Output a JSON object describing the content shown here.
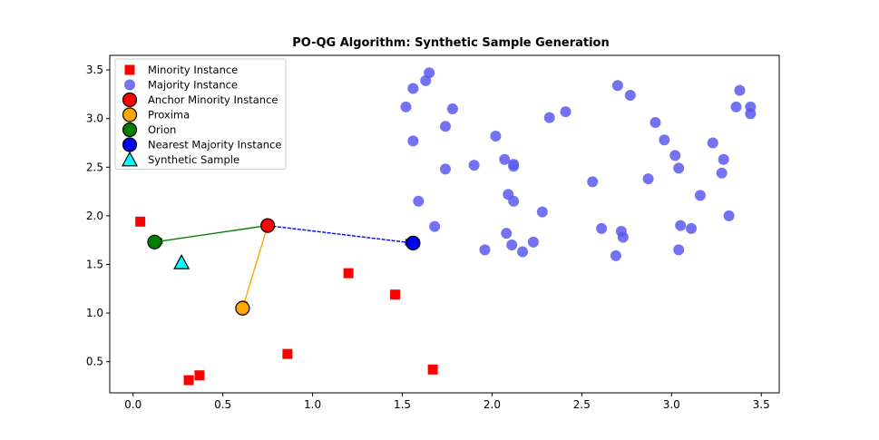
{
  "chart_data": {
    "type": "scatter",
    "title": "PO-QG Algorithm: Synthetic Sample Generation",
    "xlabel": "",
    "ylabel": "",
    "xlim": [
      -0.13,
      3.6
    ],
    "ylim": [
      0.18,
      3.65
    ],
    "x_ticks": [
      0.0,
      0.5,
      1.0,
      1.5,
      2.0,
      2.5,
      3.0,
      3.5
    ],
    "x_tick_labels": [
      "0.0",
      "0.5",
      "1.0",
      "1.5",
      "2.0",
      "2.5",
      "3.0",
      "3.5"
    ],
    "y_ticks": [
      0.5,
      1.0,
      1.5,
      2.0,
      2.5,
      3.0,
      3.5
    ],
    "y_tick_labels": [
      "0.5",
      "1.0",
      "1.5",
      "2.0",
      "2.5",
      "3.0",
      "3.5"
    ],
    "grid": false,
    "legend_position": "top-left",
    "legend": [
      {
        "label": "Minority Instance",
        "marker": "square",
        "color": "#ff0000"
      },
      {
        "label": "Majority Instance",
        "marker": "circle",
        "color": "#5a5af0"
      },
      {
        "label": "Anchor Minority Instance",
        "marker": "circle",
        "color": "#ff0000"
      },
      {
        "label": "Proxima",
        "marker": "circle",
        "color": "#ffa500"
      },
      {
        "label": "Orion",
        "marker": "circle",
        "color": "#008000"
      },
      {
        "label": "Nearest Majority Instance",
        "marker": "circle",
        "color": "#0000ff"
      },
      {
        "label": "Synthetic Sample",
        "marker": "triangle",
        "color": "#00ffff"
      }
    ],
    "series": [
      {
        "name": "Minority Instance",
        "color": "#ff0000",
        "marker": "square",
        "points": [
          [
            0.04,
            1.94
          ],
          [
            0.31,
            0.31
          ],
          [
            0.37,
            0.36
          ],
          [
            0.86,
            0.58
          ],
          [
            1.2,
            1.41
          ],
          [
            1.46,
            1.19
          ],
          [
            1.67,
            0.42
          ]
        ]
      },
      {
        "name": "Majority Instance",
        "color": "#5a5af0",
        "marker": "circle",
        "points": [
          [
            1.52,
            3.12
          ],
          [
            1.56,
            3.31
          ],
          [
            1.63,
            3.39
          ],
          [
            1.65,
            3.47
          ],
          [
            1.56,
            2.77
          ],
          [
            1.74,
            2.92
          ],
          [
            1.78,
            3.1
          ],
          [
            1.59,
            2.15
          ],
          [
            1.68,
            1.89
          ],
          [
            1.74,
            2.48
          ],
          [
            1.9,
            2.52
          ],
          [
            1.96,
            1.65
          ],
          [
            2.02,
            2.82
          ],
          [
            2.07,
            2.58
          ],
          [
            2.09,
            2.22
          ],
          [
            2.12,
            2.53
          ],
          [
            2.12,
            2.51
          ],
          [
            2.12,
            2.15
          ],
          [
            2.08,
            1.82
          ],
          [
            2.11,
            1.7
          ],
          [
            2.17,
            1.63
          ],
          [
            2.23,
            1.73
          ],
          [
            2.28,
            2.04
          ],
          [
            2.32,
            3.01
          ],
          [
            2.41,
            3.07
          ],
          [
            2.56,
            2.35
          ],
          [
            2.61,
            1.87
          ],
          [
            2.69,
            1.59
          ],
          [
            2.72,
            1.84
          ],
          [
            2.73,
            1.78
          ],
          [
            2.7,
            3.34
          ],
          [
            2.77,
            3.24
          ],
          [
            2.87,
            2.38
          ],
          [
            2.91,
            2.96
          ],
          [
            2.96,
            2.78
          ],
          [
            3.02,
            2.62
          ],
          [
            3.04,
            2.49
          ],
          [
            3.05,
            1.9
          ],
          [
            3.04,
            1.65
          ],
          [
            3.11,
            1.87
          ],
          [
            3.16,
            2.21
          ],
          [
            3.23,
            2.75
          ],
          [
            3.28,
            2.44
          ],
          [
            3.29,
            2.58
          ],
          [
            3.32,
            2.0
          ],
          [
            3.36,
            3.12
          ],
          [
            3.38,
            3.29
          ],
          [
            3.44,
            3.12
          ],
          [
            3.44,
            3.05
          ]
        ]
      },
      {
        "name": "Anchor Minority Instance",
        "color": "#ff0000",
        "marker": "circle",
        "points": [
          [
            0.75,
            1.9
          ]
        ]
      },
      {
        "name": "Proxima",
        "color": "#ffa500",
        "marker": "circle",
        "points": [
          [
            0.61,
            1.05
          ]
        ]
      },
      {
        "name": "Orion",
        "color": "#008000",
        "marker": "circle",
        "points": [
          [
            0.12,
            1.73
          ]
        ]
      },
      {
        "name": "Nearest Majority Instance",
        "color": "#0000ff",
        "marker": "circle",
        "points": [
          [
            1.56,
            1.72
          ]
        ]
      },
      {
        "name": "Synthetic Sample",
        "color": "#00ffff",
        "marker": "triangle",
        "points": [
          [
            0.27,
            1.52
          ]
        ]
      }
    ],
    "arrows": [
      {
        "name": "anchor-to-orion",
        "from": [
          0.75,
          1.9
        ],
        "to": [
          0.12,
          1.73
        ],
        "color": "#008000",
        "style": "solid"
      },
      {
        "name": "anchor-to-proxima",
        "from": [
          0.75,
          1.9
        ],
        "to": [
          0.61,
          1.05
        ],
        "color": "#ffa500",
        "style": "solid"
      },
      {
        "name": "anchor-to-nearest-majority",
        "from": [
          0.75,
          1.9
        ],
        "to": [
          1.56,
          1.72
        ],
        "color": "#0000ff",
        "style": "dashed"
      }
    ]
  }
}
